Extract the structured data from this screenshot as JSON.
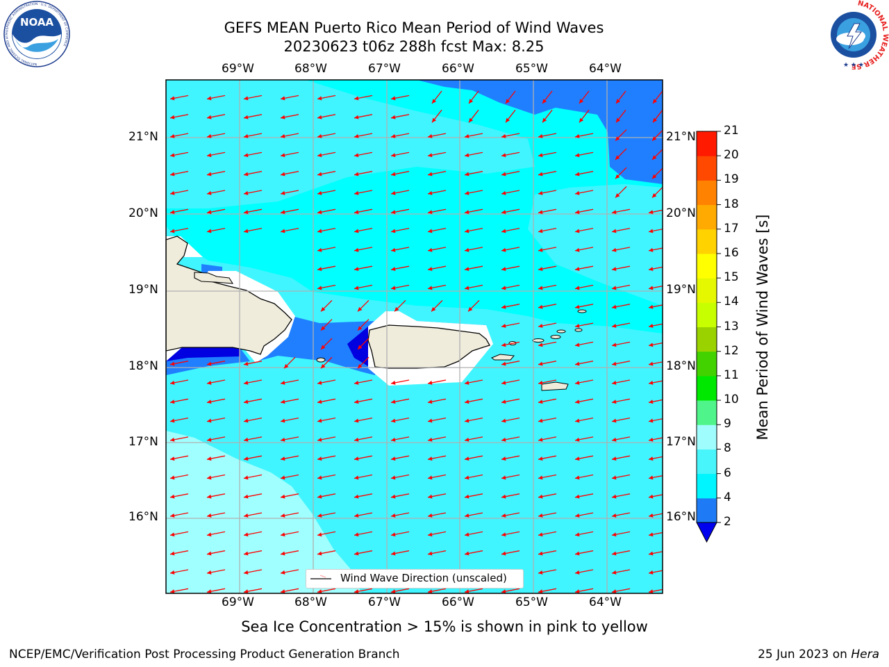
{
  "header": {
    "title_line1": "GEFS MEAN Puerto Rico Mean Period of Wind Waves",
    "title_line2": "20230623 t06z 288h fcst   Max: 8.25"
  },
  "logos": {
    "left": "NOAA",
    "left_ring": "NATIONAL OCEANIC AND ATMOSPHERIC ADMINISTRATION · U.S. DEPARTMENT OF COMMERCE",
    "right_ring": "NATIONAL WEATHER SERVICE"
  },
  "map": {
    "lon_labels": [
      "69°W",
      "68°W",
      "67°W",
      "66°W",
      "65°W",
      "64°W"
    ],
    "lat_labels": [
      "21°N",
      "20°N",
      "19°N",
      "18°N",
      "17°N",
      "16°N"
    ],
    "legend_label": "Wind Wave Direction (unscaled)",
    "colors": {
      "land": "#efecdc",
      "coast": "#000000",
      "grid": "#b0b0b0",
      "arrow": "#ff0000",
      "period_2_4": "#1f7fff",
      "period_4_6": "#00ffff",
      "period_6_8": "#40f5ff",
      "period_8_9": "#a0ffff",
      "period_lt_2": "#0000e0"
    }
  },
  "colorbar": {
    "label": "Mean Period of Wind Waves [s]",
    "ticks": [
      "2",
      "4",
      "6",
      "8",
      "9",
      "10",
      "11",
      "12",
      "13",
      "14",
      "15",
      "16",
      "17",
      "18",
      "19",
      "20",
      "21"
    ],
    "bands": [
      "#1e7bf5",
      "#00f5ff",
      "#48f5fa",
      "#a0fdfd",
      "#4ff58a",
      "#00e800",
      "#42d200",
      "#9ad200",
      "#c8ff00",
      "#e6f800",
      "#ffff00",
      "#ffd200",
      "#ffaa00",
      "#ff8200",
      "#ff4800",
      "#ff1a00"
    ],
    "extend_color": "#0000ee"
  },
  "footer": {
    "sea_ice_note": "Sea Ice Concentration > 15% is shown in pink to yellow",
    "branch": "NCEP/EMC/Verification Post Processing Product Generation Branch",
    "date": "25 Jun 2023 on ",
    "machine": "Hera"
  }
}
